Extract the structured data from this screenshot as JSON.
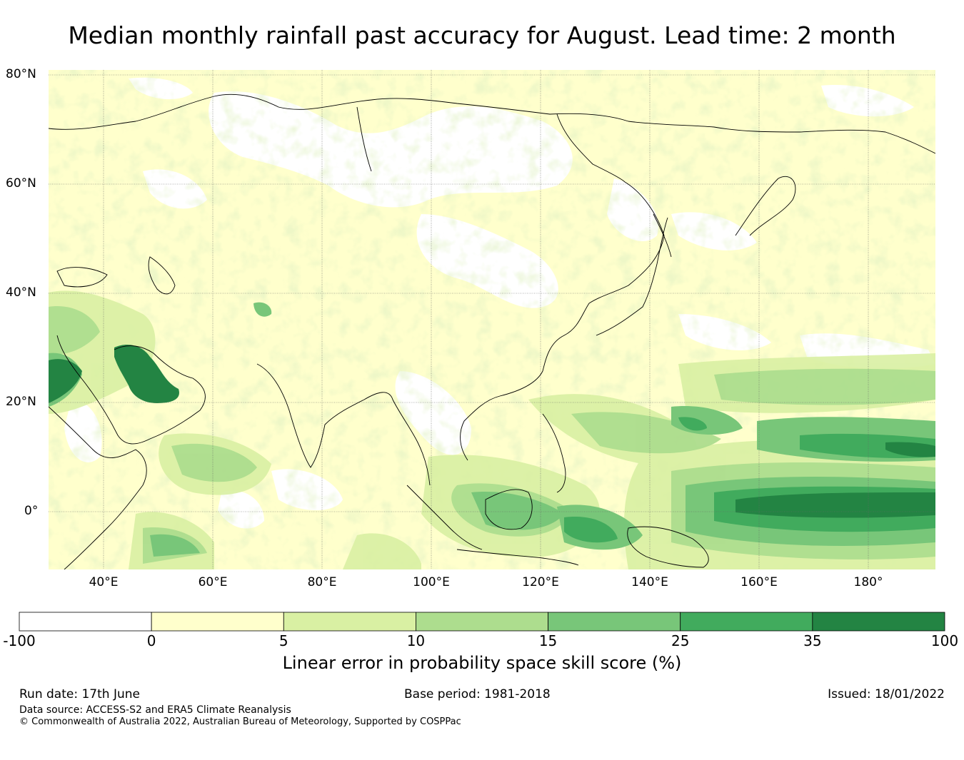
{
  "title": "Median monthly rainfall past accuracy for August. Lead time: 2 month",
  "map": {
    "lat_labels": [
      "80°N",
      "60°N",
      "40°N",
      "20°N",
      "0°"
    ],
    "lon_labels": [
      "40°E",
      "60°E",
      "80°E",
      "100°E",
      "120°E",
      "140°E",
      "160°E",
      "180°"
    ],
    "extent": {
      "lon_min": 30,
      "lon_max": 192,
      "lat_min": -11,
      "lat_max": 81
    },
    "gridlines": true,
    "ocean_color": "#ffffff",
    "coastline_color": "#000000"
  },
  "colorbar": {
    "ticks": [
      "-100",
      "0",
      "5",
      "10",
      "15",
      "25",
      "35",
      "100"
    ],
    "colors": [
      "#ffffff",
      "#ffffcc",
      "#d9f0a3",
      "#addd8e",
      "#78c679",
      "#41ab5d",
      "#238443"
    ],
    "label": "Linear error in probability space skill score (%)"
  },
  "footer": {
    "run_date": "Run date: 17th June",
    "base_period": "Base period: 1981-2018",
    "issued": "Issued: 18/01/2022",
    "data_source": "Data source: ACCESS-S2 and ERA5 Climate Reanalysis",
    "copyright": "© Commonwealth of Australia 2022, Australian Bureau of Meteorology, Supported by COSPPac"
  }
}
